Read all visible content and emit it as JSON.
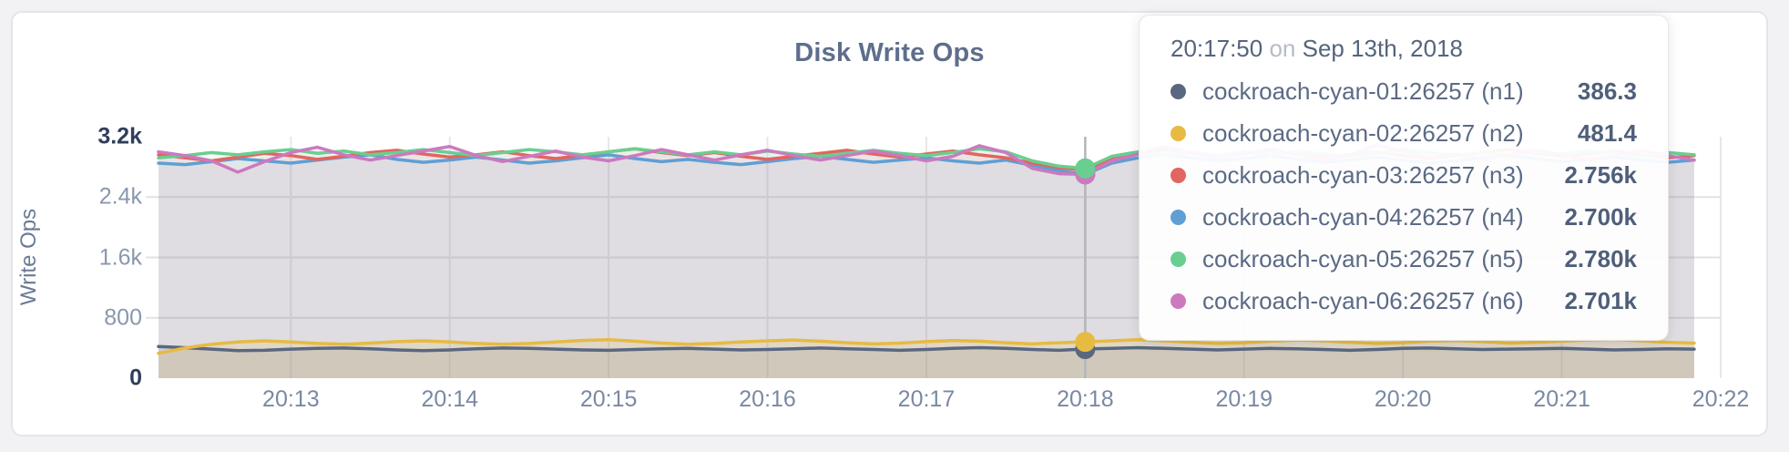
{
  "chart_data": {
    "type": "line",
    "title": "Disk Write Ops",
    "ylabel": "Write Ops",
    "ylim": [
      0,
      3200
    ],
    "grid": true,
    "x_start": "20:12:10",
    "x_step_seconds": 10,
    "x_ticks": [
      "20:13",
      "20:14",
      "20:15",
      "20:16",
      "20:17",
      "20:18",
      "20:19",
      "20:20",
      "20:21",
      "20:22"
    ],
    "y_ticks": [
      {
        "label": "3.2k",
        "value": 3200,
        "strong": true,
        "grid": false
      },
      {
        "label": "2.4k",
        "value": 2400,
        "strong": false,
        "grid": true
      },
      {
        "label": "1.6k",
        "value": 1600,
        "strong": false,
        "grid": true
      },
      {
        "label": "800",
        "value": 800,
        "strong": false,
        "grid": true
      },
      {
        "label": "0",
        "value": 0,
        "strong": true,
        "grid": false
      }
    ],
    "hover": {
      "index": 35,
      "time": "20:17:50",
      "line_color": "#b5b5b9"
    },
    "series": [
      {
        "name": "cockroach-cyan-01:26257 (n1)",
        "color": "#5a6780",
        "fill_opacity": 0.14,
        "values": [
          420,
          405,
          385,
          365,
          370,
          385,
          395,
          400,
          390,
          375,
          365,
          375,
          390,
          400,
          395,
          385,
          375,
          370,
          380,
          390,
          395,
          385,
          375,
          380,
          390,
          400,
          390,
          380,
          370,
          380,
          395,
          405,
          395,
          380,
          370,
          386,
          395,
          405,
          395,
          385,
          375,
          385,
          395,
          390,
          380,
          370,
          380,
          395,
          400,
          390,
          380,
          385,
          390,
          395,
          385,
          375,
          380,
          390,
          385
        ]
      },
      {
        "name": "cockroach-cyan-02:26257 (n2)",
        "color": "#e7ba41",
        "fill_opacity": 0.16,
        "values": [
          330,
          400,
          450,
          480,
          495,
          480,
          460,
          450,
          465,
          485,
          495,
          480,
          460,
          450,
          460,
          480,
          500,
          510,
          490,
          465,
          450,
          460,
          480,
          495,
          505,
          490,
          470,
          455,
          465,
          485,
          500,
          490,
          470,
          455,
          470,
          481,
          495,
          510,
          495,
          475,
          460,
          470,
          490,
          505,
          495,
          475,
          460,
          470,
          490,
          500,
          485,
          465,
          475,
          490,
          505,
          515,
          495,
          475,
          465
        ]
      },
      {
        "name": "cockroach-cyan-03:26257 (n3)",
        "color": "#e2655f",
        "fill_opacity": 0.09,
        "values": [
          2960,
          2920,
          2880,
          2930,
          2980,
          2950,
          2900,
          2940,
          2990,
          3020,
          2970,
          2930,
          2960,
          3000,
          2950,
          2910,
          2950,
          3000,
          3040,
          2990,
          2950,
          2990,
          2940,
          2900,
          2940,
          2980,
          3020,
          2970,
          2930,
          2970,
          3010,
          2960,
          2920,
          2850,
          2790,
          2756,
          2900,
          2970,
          3030,
          2980,
          2940,
          2980,
          3020,
          2970,
          2930,
          2960,
          3000,
          2950,
          2910,
          2950,
          2990,
          3030,
          2980,
          2940,
          2970,
          3010,
          2960,
          2920,
          2950
        ]
      },
      {
        "name": "cockroach-cyan-04:26257 (n4)",
        "color": "#5f9fd4",
        "fill_opacity": 0.09,
        "values": [
          2850,
          2830,
          2870,
          2910,
          2880,
          2850,
          2890,
          2930,
          2960,
          2900,
          2860,
          2890,
          2930,
          2890,
          2850,
          2880,
          2920,
          2960,
          2910,
          2870,
          2900,
          2860,
          2830,
          2870,
          2910,
          2940,
          2900,
          2860,
          2890,
          2920,
          2880,
          2850,
          2890,
          2820,
          2750,
          2700,
          2850,
          2920,
          2970,
          2920,
          2880,
          2910,
          2950,
          2900,
          2860,
          2890,
          2930,
          2890,
          2850,
          2880,
          2920,
          2950,
          2910,
          2870,
          2900,
          2930,
          2890,
          2860,
          2890
        ]
      },
      {
        "name": "cockroach-cyan-05:26257 (n5)",
        "color": "#6ace90",
        "fill_opacity": 0.09,
        "values": [
          2920,
          2950,
          2990,
          2960,
          3000,
          3030,
          2980,
          3010,
          2960,
          2990,
          3030,
          2990,
          2950,
          2990,
          3030,
          3000,
          2960,
          3000,
          3040,
          3000,
          2960,
          3000,
          2960,
          3010,
          2970,
          2940,
          2980,
          3020,
          2980,
          2950,
          2990,
          3040,
          3000,
          2880,
          2810,
          2780,
          2940,
          3000,
          2960,
          3000,
          2950,
          3000,
          2960,
          3010,
          2970,
          2940,
          2980,
          3030,
          2990,
          2950,
          2990,
          2950,
          3000,
          2970,
          3010,
          2980,
          2940,
          2990,
          2960
        ]
      },
      {
        "name": "cockroach-cyan-06:26257 (n6)",
        "color": "#cc79c0",
        "fill_opacity": 0.09,
        "values": [
          3000,
          2950,
          2880,
          2730,
          2870,
          2990,
          3060,
          2960,
          2890,
          2950,
          3010,
          3070,
          2950,
          2870,
          2940,
          3010,
          2930,
          2880,
          2950,
          3030,
          2960,
          2890,
          2960,
          3020,
          2950,
          2890,
          2950,
          3010,
          2950,
          2880,
          2940,
          3080,
          2990,
          2780,
          2710,
          2701,
          2880,
          2970,
          3070,
          2990,
          2920,
          2970,
          3040,
          2960,
          2890,
          2950,
          3090,
          3010,
          2920,
          2970,
          2900,
          2960,
          3030,
          2960,
          2890,
          2950,
          3020,
          2950,
          2890
        ]
      }
    ]
  },
  "tooltip": {
    "time": "20:17:50",
    "separator": "on",
    "date": "Sep 13th, 2018",
    "rows": [
      {
        "name": "cockroach-cyan-01:26257 (n1)",
        "value": "386.3",
        "color": "#5a6780"
      },
      {
        "name": "cockroach-cyan-02:26257 (n2)",
        "value": "481.4",
        "color": "#e7ba41"
      },
      {
        "name": "cockroach-cyan-03:26257 (n3)",
        "value": "2.756k",
        "color": "#e2655f"
      },
      {
        "name": "cockroach-cyan-04:26257 (n4)",
        "value": "2.700k",
        "color": "#5f9fd4"
      },
      {
        "name": "cockroach-cyan-05:26257 (n5)",
        "value": "2.780k",
        "color": "#6ace90"
      },
      {
        "name": "cockroach-cyan-06:26257 (n6)",
        "value": "2.701k",
        "color": "#cc79c0"
      }
    ]
  }
}
